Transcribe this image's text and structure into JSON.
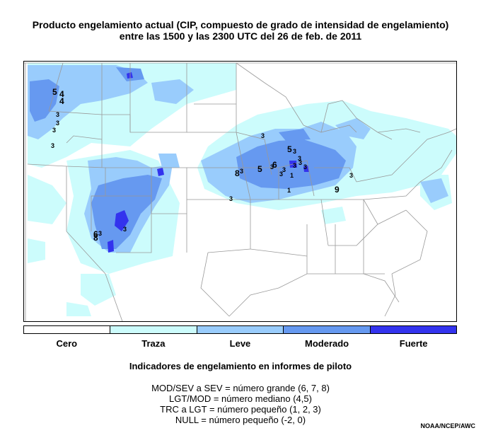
{
  "title": {
    "line1": "Producto engelamiento actual (CIP, compuesto de grado de intensidad de engelamiento)",
    "line2": "entre las 1500 y las 2300 UTC del 26 de feb. de 2011"
  },
  "legend": {
    "categories": [
      {
        "label": "Cero",
        "color": "#ffffff"
      },
      {
        "label": "Traza",
        "color": "#ccfcfc"
      },
      {
        "label": "Leve",
        "color": "#99ccfc"
      },
      {
        "label": "Moderado",
        "color": "#6699f0"
      },
      {
        "label": "Fuerte",
        "color": "#3333ee"
      }
    ]
  },
  "pirep": {
    "heading": "Indicadores de engelamiento en informes de piloto",
    "lines": [
      "MOD/SEV a SEV = número grande (6, 7, 8)",
      "LGT/MOD = número mediano (4,5)",
      "TRC a LGT = número pequeño (1, 2, 3)",
      "NULL = número pequeño (-2, 0)"
    ]
  },
  "map_marks": [
    "5",
    "4",
    "3",
    "3",
    "3",
    "3",
    "3",
    "3",
    "5",
    "3",
    "3",
    "8",
    "3",
    "5",
    "3",
    "6",
    "3",
    "3",
    "1",
    "3",
    "1",
    "3",
    "9",
    "3",
    "3",
    "6",
    "3",
    "8",
    "3",
    "4"
  ],
  "credit": "NOAA/NCEP/AWC",
  "colors": {
    "trace": "#ccfcfc",
    "light": "#99ccfc",
    "moderate": "#6699f0",
    "severe": "#3333ee",
    "border": "#999999"
  }
}
